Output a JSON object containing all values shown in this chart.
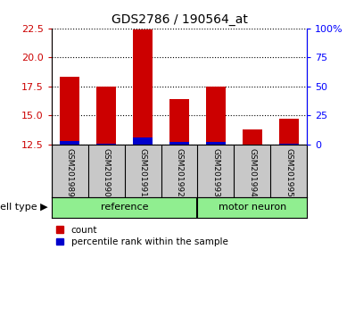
{
  "title": "GDS2786 / 190564_at",
  "categories": [
    "GSM201989",
    "GSM201990",
    "GSM201991",
    "GSM201992",
    "GSM201993",
    "GSM201994",
    "GSM201995"
  ],
  "red_values": [
    18.3,
    17.5,
    22.4,
    16.4,
    17.5,
    13.8,
    14.7
  ],
  "blue_values": [
    12.75,
    12.55,
    13.1,
    12.7,
    12.7,
    12.5,
    12.55
  ],
  "bar_bottom": 12.5,
  "ylim_min": 12.5,
  "ylim_max": 22.5,
  "yticks_left": [
    12.5,
    15.0,
    17.5,
    20.0,
    22.5
  ],
  "yticks_right": [
    0,
    25,
    50,
    75,
    100
  ],
  "red_color": "#cc0000",
  "blue_color": "#0000cc",
  "ref_count": 4,
  "motor_count": 3,
  "ref_label": "reference",
  "motor_label": "motor neuron",
  "cell_type_label": "cell type",
  "legend_count": "count",
  "legend_pct": "percentile rank within the sample",
  "tick_area_bg": "#c8c8c8",
  "group_bg": "#90ee90",
  "bar_width": 0.55,
  "title_fontsize": 10,
  "axis_fontsize": 8,
  "cat_fontsize": 6.5,
  "grp_fontsize": 8,
  "legend_fontsize": 7.5
}
